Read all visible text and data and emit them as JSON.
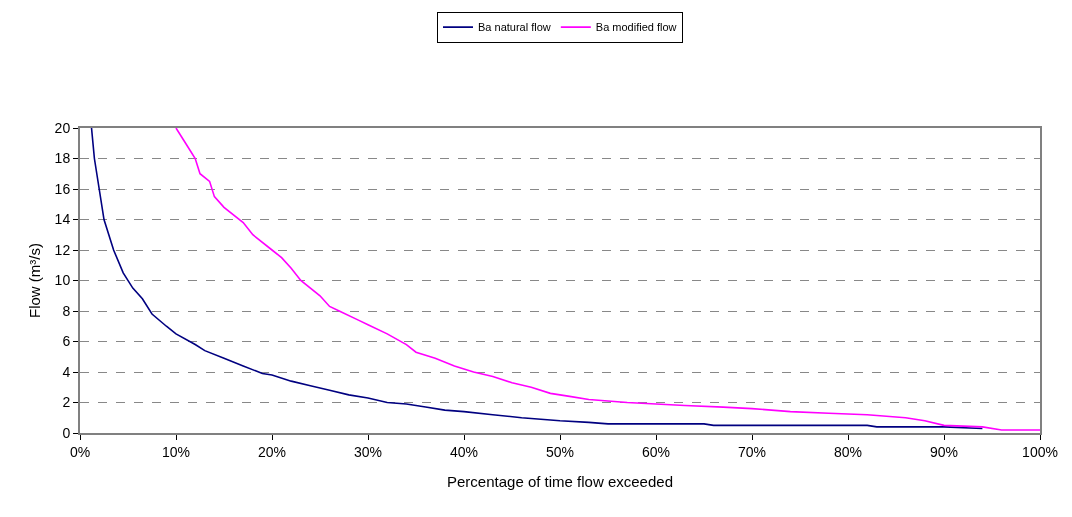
{
  "chart_data": {
    "type": "line",
    "xlabel": "Percentage of time flow exceeded",
    "ylabel": "Flow (m³/s)",
    "xlim": [
      0,
      100
    ],
    "xticks": [
      {
        "value": 0,
        "label": "0%"
      },
      {
        "value": 10,
        "label": "10%"
      },
      {
        "value": 20,
        "label": "20%"
      },
      {
        "value": 30,
        "label": "30%"
      },
      {
        "value": 40,
        "label": "40%"
      },
      {
        "value": 50,
        "label": "50%"
      },
      {
        "value": 60,
        "label": "60%"
      },
      {
        "value": 70,
        "label": "70%"
      },
      {
        "value": 80,
        "label": "80%"
      },
      {
        "value": 90,
        "label": "90%"
      },
      {
        "value": 100,
        "label": "100%"
      }
    ],
    "ylim": [
      0,
      20
    ],
    "yticks": [
      0,
      2,
      4,
      6,
      8,
      10,
      12,
      14,
      16,
      18,
      20
    ],
    "grid": "y",
    "legend": "top",
    "marker": "none",
    "line_style": "solid",
    "series": [
      {
        "name": "Ba natural flow",
        "color": "#000080",
        "x": [
          1.2,
          1.5,
          2,
          2.5,
          3,
          3.5,
          4.5,
          5.5,
          6.5,
          7.5,
          9,
          10,
          12,
          13,
          15,
          17,
          19,
          20,
          22,
          24,
          26,
          28,
          30,
          32,
          34,
          36,
          38,
          40,
          43,
          46,
          50,
          53,
          55,
          60,
          65,
          66,
          75,
          82,
          83,
          90,
          94
        ],
        "values": [
          20,
          18,
          16,
          14,
          13,
          12,
          10.5,
          9.5,
          8.8,
          7.8,
          7,
          6.5,
          5.8,
          5.4,
          4.9,
          4.4,
          3.9,
          3.8,
          3.4,
          3.1,
          2.8,
          2.5,
          2.3,
          2.0,
          1.9,
          1.7,
          1.5,
          1.4,
          1.2,
          1.0,
          0.8,
          0.7,
          0.6,
          0.6,
          0.6,
          0.5,
          0.5,
          0.5,
          0.4,
          0.4,
          0.3
        ]
      },
      {
        "name": "Ba modified flow",
        "color": "#ff00ff",
        "x": [
          10,
          11,
          12,
          12.5,
          13.5,
          14,
          15,
          17,
          18,
          20,
          21,
          22,
          23,
          25,
          26,
          27,
          29,
          30,
          32,
          34,
          35,
          37,
          39,
          41,
          43,
          45,
          47,
          49,
          51,
          53,
          55,
          57,
          60,
          63,
          67,
          70,
          74,
          78,
          82,
          86,
          88,
          90,
          94,
          96,
          100
        ],
        "values": [
          20,
          19,
          18,
          17,
          16.5,
          15.5,
          14.8,
          13.8,
          13,
          12,
          11.5,
          10.8,
          10,
          9,
          8.3,
          8,
          7.4,
          7.1,
          6.5,
          5.8,
          5.3,
          4.9,
          4.4,
          4.0,
          3.7,
          3.3,
          3.0,
          2.6,
          2.4,
          2.2,
          2.1,
          2.0,
          1.9,
          1.8,
          1.7,
          1.6,
          1.4,
          1.3,
          1.2,
          1.0,
          0.8,
          0.5,
          0.4,
          0.2,
          0.2
        ]
      }
    ]
  }
}
